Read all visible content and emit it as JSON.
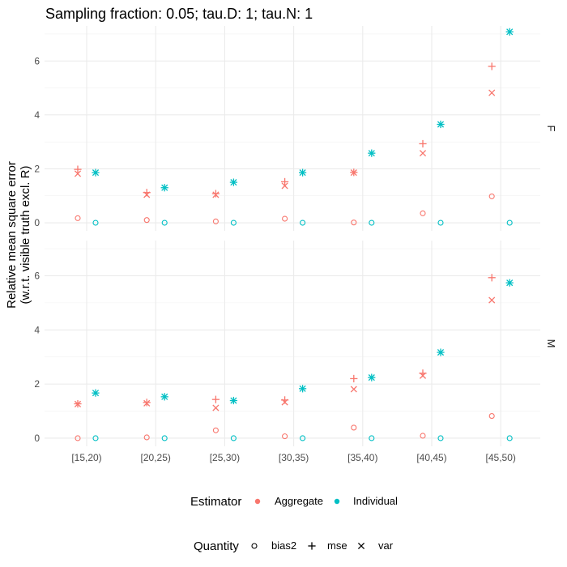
{
  "chart_data": {
    "type": "scatter",
    "title": "Sampling fraction: 0.05; tau.D: 1; tau.N: 1",
    "ylabel_lines": [
      "Relative mean square error",
      "(w.r.t. visible truth excl. R)"
    ],
    "xlabel": "",
    "categories": [
      "[15,20)",
      "[20,25)",
      "[25,30)",
      "[30,35)",
      "[35,40)",
      "[40,45)",
      "[45,50)"
    ],
    "ylim": [
      -0.3,
      7.3
    ],
    "yticks": [
      0,
      2,
      4,
      6
    ],
    "grid": true,
    "facets": [
      "F",
      "M"
    ],
    "estimators": [
      {
        "name": "Aggregate",
        "color": "#F8766D"
      },
      {
        "name": "Individual",
        "color": "#00BFC4"
      }
    ],
    "quantities": [
      {
        "name": "bias2",
        "shape": "circle"
      },
      {
        "name": "mse",
        "shape": "plus"
      },
      {
        "name": "var",
        "shape": "cross"
      }
    ],
    "legend_position": "bottom",
    "legend_titles": {
      "estimator": "Estimator",
      "quantity": "Quantity"
    },
    "panels": [
      {
        "facet": "F",
        "series": [
          {
            "estimator": "Aggregate",
            "quantity": "bias2",
            "values": [
              0.17,
              0.1,
              0.05,
              0.15,
              0.01,
              0.35,
              0.98
            ]
          },
          {
            "estimator": "Aggregate",
            "quantity": "mse",
            "values": [
              1.98,
              1.12,
              1.08,
              1.52,
              1.87,
              2.93,
              5.8
            ]
          },
          {
            "estimator": "Aggregate",
            "quantity": "var",
            "values": [
              1.82,
              1.04,
              1.04,
              1.37,
              1.86,
              2.58,
              4.82
            ]
          },
          {
            "estimator": "Individual",
            "quantity": "bias2",
            "values": [
              0.0,
              0.0,
              0.0,
              0.0,
              0.0,
              0.0,
              0.0
            ]
          },
          {
            "estimator": "Individual",
            "quantity": "mse",
            "values": [
              1.86,
              1.3,
              1.5,
              1.86,
              2.58,
              3.65,
              7.08
            ]
          },
          {
            "estimator": "Individual",
            "quantity": "var",
            "values": [
              1.86,
              1.3,
              1.5,
              1.86,
              2.58,
              3.65,
              7.08
            ]
          }
        ]
      },
      {
        "facet": "M",
        "series": [
          {
            "estimator": "Aggregate",
            "quantity": "bias2",
            "values": [
              0.0,
              0.03,
              0.29,
              0.07,
              0.39,
              0.09,
              0.82
            ]
          },
          {
            "estimator": "Aggregate",
            "quantity": "mse",
            "values": [
              1.27,
              1.32,
              1.43,
              1.41,
              2.2,
              2.4,
              5.93
            ]
          },
          {
            "estimator": "Aggregate",
            "quantity": "var",
            "values": [
              1.26,
              1.29,
              1.12,
              1.33,
              1.81,
              2.31,
              5.1
            ]
          },
          {
            "estimator": "Individual",
            "quantity": "bias2",
            "values": [
              0.0,
              0.0,
              0.0,
              0.0,
              0.0,
              0.0,
              0.0
            ]
          },
          {
            "estimator": "Individual",
            "quantity": "mse",
            "values": [
              1.67,
              1.53,
              1.39,
              1.83,
              2.24,
              3.17,
              5.74
            ]
          },
          {
            "estimator": "Individual",
            "quantity": "var",
            "values": [
              1.67,
              1.53,
              1.39,
              1.83,
              2.24,
              3.17,
              5.74
            ]
          }
        ]
      }
    ]
  }
}
